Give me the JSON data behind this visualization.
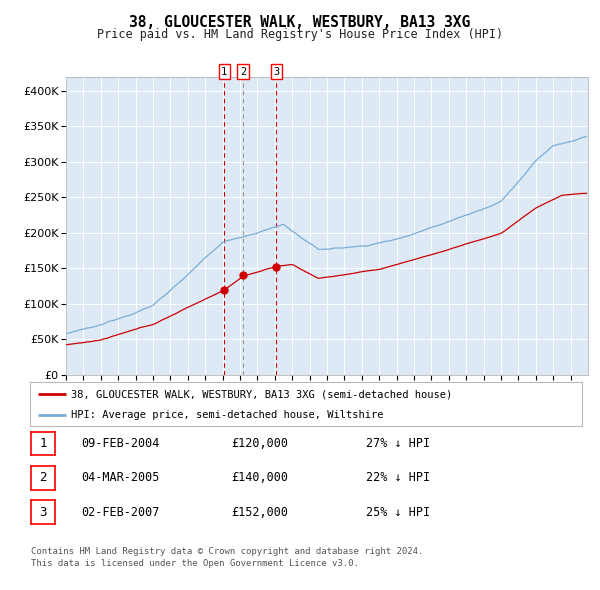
{
  "title": "38, GLOUCESTER WALK, WESTBURY, BA13 3XG",
  "subtitle": "Price paid vs. HM Land Registry's House Price Index (HPI)",
  "legend_line1": "38, GLOUCESTER WALK, WESTBURY, BA13 3XG (semi-detached house)",
  "legend_line2": "HPI: Average price, semi-detached house, Wiltshire",
  "transactions": [
    {
      "num": 1,
      "date": "09-FEB-2004",
      "price": 120000,
      "hpi_pct": "27% ↓ HPI"
    },
    {
      "num": 2,
      "date": "04-MAR-2005",
      "price": 140000,
      "hpi_pct": "22% ↓ HPI"
    },
    {
      "num": 3,
      "date": "02-FEB-2007",
      "price": 152000,
      "hpi_pct": "25% ↓ HPI"
    }
  ],
  "transaction_dates_decimal": [
    2004.1,
    2005.17,
    2007.09
  ],
  "transaction_prices": [
    120000,
    140000,
    152000
  ],
  "footnote1": "Contains HM Land Registry data © Crown copyright and database right 2024.",
  "footnote2": "This data is licensed under the Open Government Licence v3.0.",
  "red_line_color": "#cc0000",
  "blue_line_color": "#7aadd4",
  "plot_bg_color": "#ddeaf6",
  "outer_bg_color": "#ffffff",
  "grid_color": "#ffffff",
  "vline_color_red": "#cc0000",
  "vline_color_grey": "#999999",
  "ylim": [
    0,
    420000
  ],
  "yticks": [
    0,
    50000,
    100000,
    150000,
    200000,
    250000,
    300000,
    350000,
    400000
  ],
  "xstart": 1995.0,
  "xend": 2025.0
}
